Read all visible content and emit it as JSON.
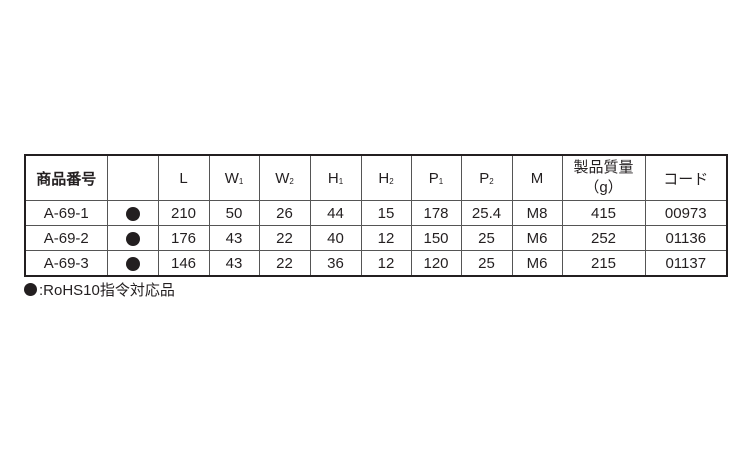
{
  "table": {
    "headers": [
      {
        "base": "商品番号",
        "sub": ""
      },
      {
        "base": "",
        "sub": ""
      },
      {
        "base": "L",
        "sub": ""
      },
      {
        "base": "W",
        "sub": "1"
      },
      {
        "base": "W",
        "sub": "2"
      },
      {
        "base": "H",
        "sub": "1"
      },
      {
        "base": "H",
        "sub": "2"
      },
      {
        "base": "P",
        "sub": "1"
      },
      {
        "base": "P",
        "sub": "2"
      },
      {
        "base": "M",
        "sub": ""
      },
      {
        "base": "製品質量",
        "sub": "（g）"
      },
      {
        "base": "コード",
        "sub": ""
      }
    ],
    "rows": [
      {
        "code": "A-69-1",
        "rohs": true,
        "L": "210",
        "W1": "50",
        "W2": "26",
        "H1": "44",
        "H2": "15",
        "P1": "178",
        "P2": "25.4",
        "M": "M8",
        "mass": "415",
        "cd": "00973"
      },
      {
        "code": "A-69-2",
        "rohs": true,
        "L": "176",
        "W1": "43",
        "W2": "22",
        "H1": "40",
        "H2": "12",
        "P1": "150",
        "P2": "25",
        "M": "M6",
        "mass": "252",
        "cd": "01136"
      },
      {
        "code": "A-69-3",
        "rohs": true,
        "L": "146",
        "W1": "43",
        "W2": "22",
        "H1": "36",
        "H2": "12",
        "P1": "120",
        "P2": "25",
        "M": "M6",
        "mass": "215",
        "cd": "01137"
      }
    ]
  },
  "note": {
    "text": ":RoHS10指令対応品",
    "icon": "filled-circle"
  },
  "colors": {
    "ink": "#231f20"
  }
}
